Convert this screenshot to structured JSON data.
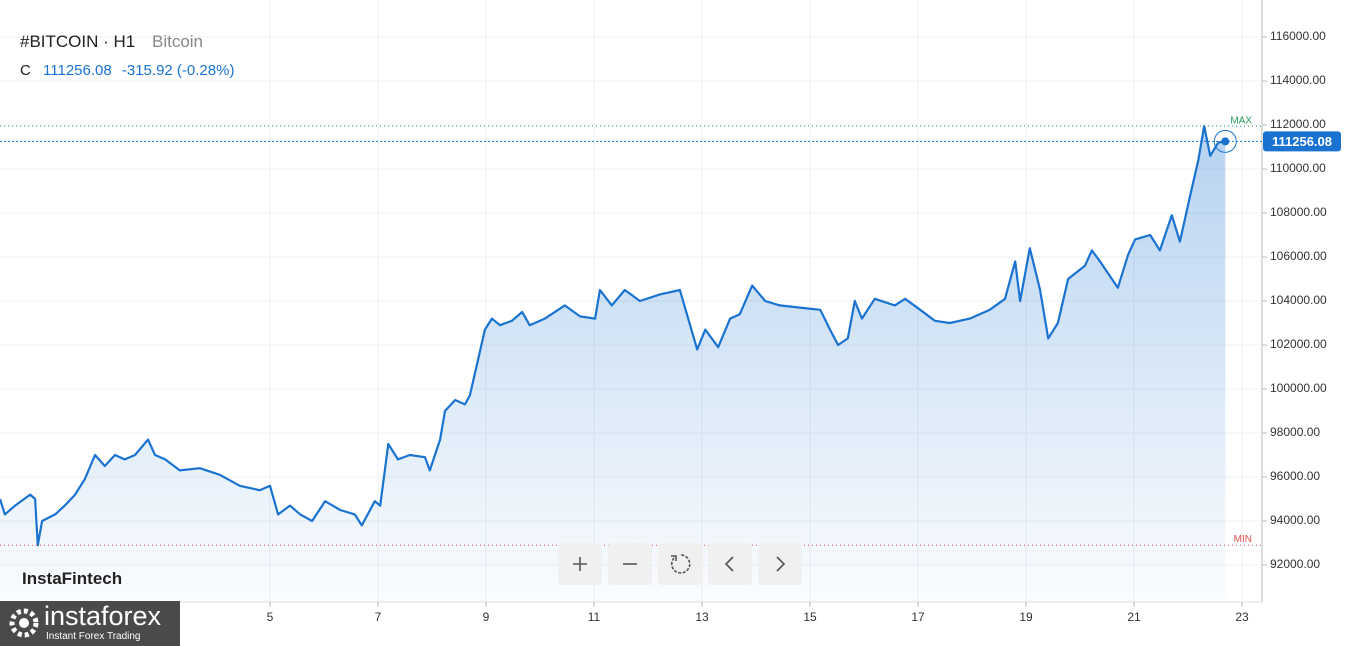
{
  "chart_data": {
    "type": "area",
    "symbol": "#BITCOIN · H1",
    "name": "Bitcoin",
    "close_prefix": "C",
    "close": 111256.08,
    "change": "-315.92 (-0.28%)",
    "brand": "InstaFintech",
    "logo_title": "instaforex",
    "logo_subtitle": "Instant Forex Trading",
    "max_label": "MAX",
    "min_label": "MIN",
    "max": 111950,
    "min": 92900,
    "color": "#1a73d1",
    "grid": true,
    "xlim": [
      0,
      23.37
    ],
    "xticks": [
      5,
      7,
      9,
      11,
      13,
      15,
      17,
      19,
      21,
      23
    ],
    "ylim": [
      90318,
      117682
    ],
    "yticks": [
      {
        "value": 92000,
        "label": "92000.00"
      },
      {
        "value": 94000,
        "label": "94000.00"
      },
      {
        "value": 96000,
        "label": "96000.00"
      },
      {
        "value": 98000,
        "label": "98000.00"
      },
      {
        "value": 100000,
        "label": "100000.00"
      },
      {
        "value": 102000,
        "label": "102000.00"
      },
      {
        "value": 104000,
        "label": "104000.00"
      },
      {
        "value": 106000,
        "label": "106000.00"
      },
      {
        "value": 108000,
        "label": "108000.00"
      },
      {
        "value": 110000,
        "label": "110000.00"
      },
      {
        "value": 112000,
        "label": "112000.00"
      },
      {
        "value": 114000,
        "label": "114000.00"
      },
      {
        "value": 116000,
        "label": "116000.00"
      }
    ],
    "x": [
      0,
      0.09,
      0.28,
      0.56,
      0.65,
      0.7,
      0.78,
      1.02,
      1.2,
      1.39,
      1.57,
      1.76,
      1.94,
      2.13,
      2.31,
      2.5,
      2.74,
      2.87,
      3.06,
      3.33,
      3.7,
      4.07,
      4.44,
      4.81,
      5.0,
      5.15,
      5.37,
      5.56,
      5.78,
      6.02,
      6.3,
      6.57,
      6.7,
      6.94,
      7.04,
      7.19,
      7.37,
      7.59,
      7.87,
      7.96,
      8.15,
      8.24,
      8.43,
      8.61,
      8.7,
      8.85,
      8.98,
      9.11,
      9.26,
      9.48,
      9.67,
      9.81,
      10.09,
      10.46,
      10.74,
      11.02,
      11.11,
      11.33,
      11.57,
      11.85,
      12.22,
      12.59,
      12.78,
      12.91,
      13.06,
      13.3,
      13.52,
      13.7,
      13.93,
      14.17,
      14.44,
      14.81,
      15.19,
      15.37,
      15.52,
      15.7,
      15.83,
      15.96,
      16.2,
      16.57,
      16.76,
      17.04,
      17.31,
      17.59,
      17.96,
      18.33,
      18.61,
      18.8,
      18.89,
      19.07,
      19.26,
      19.41,
      19.59,
      19.78,
      20.09,
      20.22,
      20.37,
      20.7,
      20.89,
      21.02,
      21.3,
      21.48,
      21.7,
      21.85,
      22.04,
      22.19,
      22.3,
      22.41,
      22.56,
      22.69
    ],
    "values": [
      95000,
      94300,
      94700,
      95200,
      95000,
      92900,
      94000,
      94300,
      94700,
      95200,
      95900,
      97000,
      96500,
      97000,
      96800,
      97000,
      97700,
      97000,
      96800,
      96300,
      96400,
      96100,
      95600,
      95400,
      95600,
      94300,
      94700,
      94300,
      94000,
      94900,
      94500,
      94300,
      93800,
      94900,
      94700,
      97500,
      96800,
      97000,
      96900,
      96300,
      97700,
      99000,
      99500,
      99300,
      99700,
      101300,
      102700,
      103200,
      102900,
      103100,
      103500,
      102900,
      103200,
      103800,
      103300,
      103200,
      104500,
      103800,
      104500,
      104000,
      104300,
      104500,
      102900,
      101800,
      102700,
      101900,
      103200,
      103400,
      104700,
      104000,
      103800,
      103700,
      103600,
      102700,
      102000,
      102300,
      104000,
      103200,
      104100,
      103800,
      104100,
      103600,
      103100,
      103000,
      103200,
      103600,
      104100,
      105800,
      104000,
      106400,
      104500,
      102300,
      103000,
      105000,
      105600,
      106300,
      105800,
      104600,
      106100,
      106800,
      107000,
      106300,
      107900,
      106700,
      108800,
      110400,
      111950,
      110600,
      111200,
      111256.08
    ]
  }
}
